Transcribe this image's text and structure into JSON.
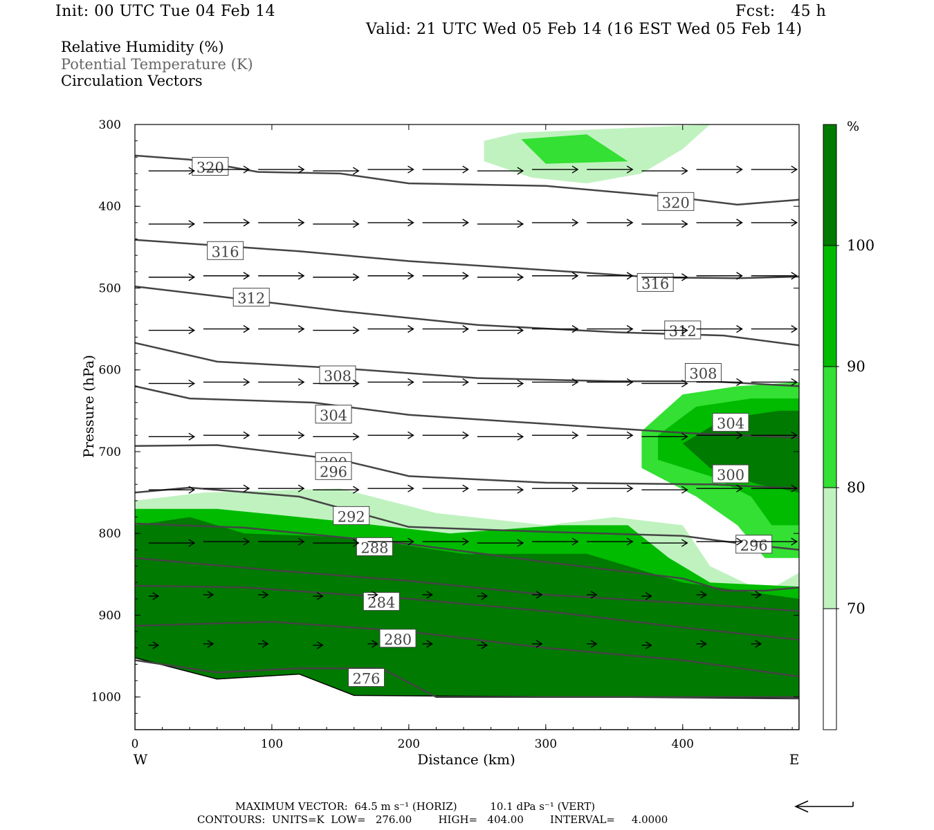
{
  "header": {
    "init": "Init: 00 UTC Tue 04 Feb 14",
    "fcst": "Fcst:   45 h",
    "valid": "Valid: 21 UTC Wed 05 Feb 14 (16 EST Wed 05 Feb 14)"
  },
  "legend": {
    "line1": "Relative Humidity (%)",
    "line2": "Potential Temperature (K)",
    "line3": "Circulation Vectors"
  },
  "footer": {
    "max_vector": "MAXIMUM VECTOR:  64.5 m s⁻¹ (HORIZ)          10.1 dPa s⁻¹ (VERT)",
    "contours": "CONTOURS:  UNITS=K  LOW=   276.00        HIGH=   404.00        INTERVAL=     4.0000"
  },
  "colorbar": {
    "unit": "%",
    "levels": [
      70,
      80,
      90,
      100
    ],
    "colors": [
      "#ffffff",
      "#c0f2c0",
      "#33e033",
      "#00bb00",
      "#007a00"
    ]
  },
  "chart_data": {
    "type": "cross-section",
    "xlabel": "Distance (km)",
    "ylabel": "Pressure (hPa)",
    "xlim": [
      0,
      485
    ],
    "ylim": [
      1040,
      300
    ],
    "x_ticks": [
      0,
      100,
      200,
      300,
      400
    ],
    "y_ticks": [
      300,
      400,
      500,
      600,
      700,
      800,
      900,
      1000
    ],
    "x_end_labels": {
      "left": "W",
      "right": "E"
    },
    "theta_contours": [
      {
        "label": "320",
        "points": [
          [
            0,
            338
          ],
          [
            40,
            343
          ],
          [
            90,
            358
          ],
          [
            150,
            360
          ],
          [
            200,
            372
          ],
          [
            300,
            375
          ],
          [
            400,
            390
          ],
          [
            440,
            398
          ],
          [
            485,
            392
          ]
        ],
        "labels_at": [
          [
            55,
            352
          ],
          [
            395,
            395
          ]
        ]
      },
      {
        "label": "316",
        "points": [
          [
            0,
            441
          ],
          [
            60,
            448
          ],
          [
            120,
            455
          ],
          [
            200,
            467
          ],
          [
            300,
            478
          ],
          [
            380,
            487
          ],
          [
            440,
            488
          ],
          [
            485,
            486
          ]
        ],
        "labels_at": [
          [
            66,
            455
          ],
          [
            380,
            494
          ]
        ]
      },
      {
        "label": "312",
        "points": [
          [
            0,
            498
          ],
          [
            60,
            510
          ],
          [
            150,
            528
          ],
          [
            250,
            545
          ],
          [
            350,
            554
          ],
          [
            430,
            558
          ],
          [
            485,
            570
          ]
        ],
        "labels_at": [
          [
            85,
            512
          ],
          [
            400,
            552
          ]
        ]
      },
      {
        "label": "308",
        "points": [
          [
            0,
            567
          ],
          [
            60,
            590
          ],
          [
            150,
            598
          ],
          [
            250,
            610
          ],
          [
            350,
            614
          ],
          [
            420,
            614
          ],
          [
            485,
            620
          ]
        ],
        "labels_at": [
          [
            148,
            607
          ],
          [
            415,
            604
          ]
        ]
      },
      {
        "label": "304",
        "points": [
          [
            0,
            620
          ],
          [
            40,
            635
          ],
          [
            130,
            640
          ],
          [
            200,
            655
          ],
          [
            300,
            666
          ],
          [
            400,
            677
          ],
          [
            485,
            683
          ]
        ],
        "labels_at": [
          [
            145,
            655
          ],
          [
            435,
            665
          ]
        ]
      },
      {
        "label": "300",
        "points": [
          [
            0,
            693
          ],
          [
            60,
            692
          ],
          [
            150,
            710
          ],
          [
            200,
            730
          ],
          [
            300,
            738
          ],
          [
            420,
            740
          ],
          [
            485,
            745
          ]
        ],
        "labels_at": [
          [
            145,
            713
          ],
          [
            435,
            728
          ]
        ]
      },
      {
        "label": "296",
        "points": [
          [
            0,
            750
          ],
          [
            40,
            744
          ],
          [
            120,
            755
          ],
          [
            200,
            792
          ],
          [
            300,
            798
          ],
          [
            400,
            803
          ],
          [
            450,
            814
          ],
          [
            485,
            820
          ]
        ],
        "labels_at": [
          [
            145,
            724
          ],
          [
            452,
            814
          ]
        ]
      },
      {
        "label": "292",
        "points": [
          [
            0,
            788
          ],
          [
            80,
            793
          ],
          [
            200,
            813
          ],
          [
            300,
            835
          ],
          [
            400,
            855
          ],
          [
            430,
            870
          ],
          [
            460,
            870
          ],
          [
            485,
            866
          ]
        ],
        "labels_at": [
          [
            158,
            779
          ],
          []
        ]
      },
      {
        "label": "288",
        "points": [
          [
            0,
            830
          ],
          [
            100,
            845
          ],
          [
            200,
            858
          ],
          [
            300,
            875
          ],
          [
            400,
            885
          ],
          [
            485,
            895
          ]
        ],
        "labels_at": [
          [
            175,
            817
          ],
          []
        ]
      },
      {
        "label": "284",
        "points": [
          [
            0,
            864
          ],
          [
            80,
            866
          ],
          [
            200,
            880
          ],
          [
            300,
            895
          ],
          [
            400,
            915
          ],
          [
            485,
            930
          ]
        ],
        "labels_at": [
          [
            180,
            884
          ],
          []
        ]
      },
      {
        "label": "280",
        "points": [
          [
            0,
            913
          ],
          [
            100,
            908
          ],
          [
            200,
            920
          ],
          [
            300,
            940
          ],
          [
            400,
            955
          ],
          [
            485,
            975
          ]
        ],
        "labels_at": [
          [
            192,
            929
          ],
          []
        ]
      },
      {
        "label": "276",
        "points": [
          [
            0,
            955
          ],
          [
            60,
            970
          ],
          [
            120,
            965
          ],
          [
            180,
            965
          ],
          [
            220,
            1000
          ],
          [
            485,
            1000
          ]
        ],
        "labels_at": [
          [
            169,
            977
          ],
          []
        ]
      }
    ],
    "rh_regions": [
      {
        "level": 70,
        "points": [
          [
            0,
            760
          ],
          [
            50,
            750
          ],
          [
            150,
            745
          ],
          [
            220,
            775
          ],
          [
            300,
            790
          ],
          [
            350,
            780
          ],
          [
            400,
            790
          ],
          [
            420,
            840
          ],
          [
            460,
            872
          ],
          [
            485,
            848
          ],
          [
            485,
            1000
          ],
          [
            0,
            1000
          ]
        ]
      },
      {
        "level": 90,
        "points": [
          [
            0,
            770
          ],
          [
            60,
            770
          ],
          [
            150,
            785
          ],
          [
            230,
            800
          ],
          [
            310,
            790
          ],
          [
            360,
            790
          ],
          [
            390,
            830
          ],
          [
            420,
            860
          ],
          [
            485,
            865
          ],
          [
            485,
            1000
          ],
          [
            0,
            1000
          ]
        ]
      },
      {
        "level": 100,
        "points": [
          [
            0,
            790
          ],
          [
            40,
            780
          ],
          [
            80,
            800
          ],
          [
            160,
            805
          ],
          [
            240,
            825
          ],
          [
            330,
            825
          ],
          [
            360,
            840
          ],
          [
            400,
            860
          ],
          [
            485,
            880
          ],
          [
            485,
            1000
          ],
          [
            0,
            1000
          ]
        ]
      },
      {
        "level": 80,
        "points": [
          [
            370,
            675
          ],
          [
            400,
            630
          ],
          [
            440,
            620
          ],
          [
            485,
            615
          ],
          [
            485,
            830
          ],
          [
            460,
            830
          ],
          [
            440,
            790
          ],
          [
            410,
            755
          ],
          [
            370,
            720
          ]
        ]
      },
      {
        "level": 90,
        "points": [
          [
            382,
            680
          ],
          [
            410,
            645
          ],
          [
            450,
            635
          ],
          [
            485,
            635
          ],
          [
            485,
            790
          ],
          [
            465,
            790
          ],
          [
            450,
            755
          ],
          [
            420,
            730
          ],
          [
            382,
            710
          ]
        ]
      },
      {
        "level": 100,
        "points": [
          [
            400,
            690
          ],
          [
            430,
            660
          ],
          [
            470,
            650
          ],
          [
            485,
            650
          ],
          [
            485,
            750
          ],
          [
            455,
            740
          ],
          [
            420,
            720
          ]
        ]
      },
      {
        "level": 70,
        "points": [
          [
            255,
            320
          ],
          [
            280,
            310
          ],
          [
            350,
            305
          ],
          [
            420,
            300
          ],
          [
            400,
            330
          ],
          [
            370,
            360
          ],
          [
            330,
            372
          ],
          [
            290,
            365
          ],
          [
            255,
            345
          ]
        ]
      },
      {
        "level": 80,
        "points": [
          [
            282,
            318
          ],
          [
            330,
            312
          ],
          [
            360,
            345
          ],
          [
            300,
            348
          ]
        ]
      }
    ],
    "vector_rows_hpa": [
      355,
      420,
      485,
      550,
      615,
      680,
      745,
      810,
      875,
      935
    ],
    "max_vector": {
      "horiz": 64.5,
      "horiz_units": "m s-1",
      "vert": 10.1,
      "vert_units": "dPa s-1"
    },
    "contour_info": {
      "units": "K",
      "low": 276.0,
      "high": 404.0,
      "interval": 4.0
    }
  }
}
